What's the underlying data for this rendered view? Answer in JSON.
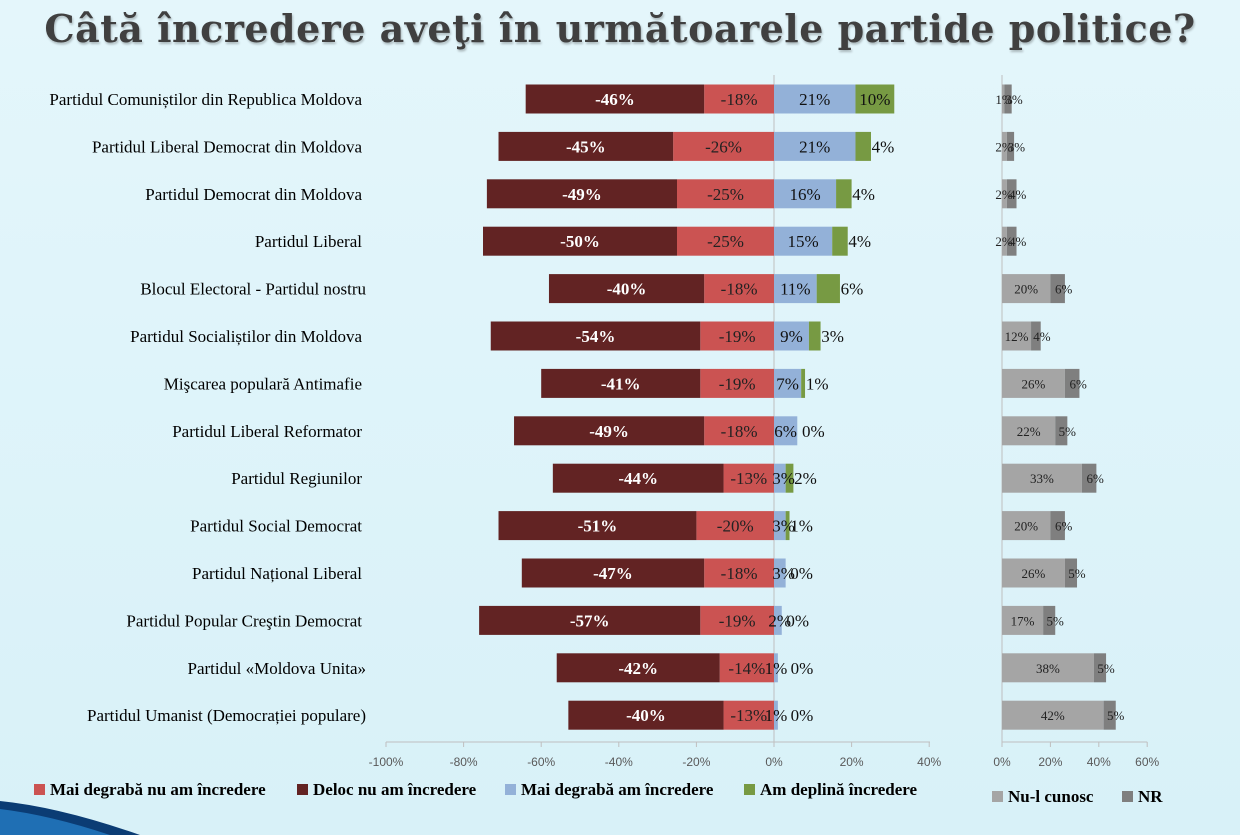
{
  "title": "Câtă încredere aveţi în următoarele partide politice?",
  "colors": {
    "deloc": "#622323",
    "mai_degraba_nu": "#cb5352",
    "mai_degraba_da": "#93b1d8",
    "deplina": "#779a43",
    "nu_cunosc": "#a5a5a5",
    "nr": "#7f7f7f"
  },
  "chart_data": [
    {
      "type": "bar",
      "orientation": "horizontal",
      "stacked": "diverging",
      "title": "",
      "xlim": [
        -100,
        40
      ],
      "xticks": [
        "-100%",
        "-80%",
        "-60%",
        "-40%",
        "-20%",
        "0%",
        "20%",
        "40%"
      ],
      "categories": [
        "Partidul Comuniștilor din Republica Moldova",
        "Partidul Liberal Democrat din Moldova",
        "Partidul Democrat din Moldova",
        "Partidul Liberal",
        "Blocul Electoral - Partidul nostru",
        "Partidul Socialiștilor din Moldova",
        "Mişcarea populară Antimafie",
        "Partidul Liberal Reformator",
        "Partidul Regiunilor",
        "Partidul Social Democrat",
        "Partidul Național Liberal",
        "Partidul Popular Creştin Democrat",
        "Partidul «Moldova Unita»",
        "Partidul Umanist (Democrației populare)"
      ],
      "series": [
        {
          "name": "Mai degrabă nu am încredere",
          "values": [
            -18,
            -26,
            -25,
            -25,
            -18,
            -19,
            -19,
            -18,
            -13,
            -20,
            -18,
            -19,
            -14,
            -13
          ],
          "labels": [
            "-18%",
            "-26%",
            "-25%",
            "-25%",
            "-18%",
            "-19%",
            "-19%",
            "-18%",
            "-13%",
            "-20%",
            "-18%",
            "-19%",
            "-14%",
            "-13%"
          ]
        },
        {
          "name": "Deloc nu am încredere",
          "values": [
            -46,
            -45,
            -49,
            -50,
            -40,
            -54,
            -41,
            -49,
            -44,
            -51,
            -47,
            -57,
            -42,
            -40
          ],
          "labels": [
            "-46%",
            "-45%",
            "-49%",
            "-50%",
            "-40%",
            "-54%",
            "-41%",
            "-49%",
            "-44%",
            "-51%",
            "-47%",
            "-57%",
            "-42%",
            "-40%"
          ]
        },
        {
          "name": "Mai degrabă am încredere",
          "values": [
            21,
            21,
            16,
            15,
            11,
            9,
            7,
            6,
            3,
            3,
            3,
            2,
            1,
            1
          ],
          "labels": [
            "21%",
            "21%",
            "16%",
            "15%",
            "11%",
            "9%",
            "7%",
            "6%",
            "3%",
            "3%",
            "3%",
            "2%",
            "1%",
            "1%"
          ]
        },
        {
          "name": "Am deplină încredere",
          "values": [
            10,
            4,
            4,
            4,
            6,
            3,
            1,
            0,
            2,
            1,
            0,
            0,
            0,
            0
          ],
          "labels": [
            "10%",
            "4%",
            "4%",
            "4%",
            "6%",
            "3%",
            "1%",
            "0%",
            "2%",
            "1%",
            "0%",
            "0%",
            "0%",
            "0%"
          ]
        }
      ]
    },
    {
      "type": "bar",
      "orientation": "horizontal",
      "stacked": true,
      "title": "",
      "xlim": [
        0,
        60
      ],
      "xticks": [
        "0%",
        "20%",
        "40%",
        "60%"
      ],
      "series": [
        {
          "name": "Nu-l cunosc",
          "values": [
            1,
            2,
            2,
            2,
            20,
            12,
            26,
            22,
            33,
            20,
            26,
            17,
            38,
            42
          ],
          "labels": [
            "1%",
            "2%",
            "2%",
            "2%",
            "20%",
            "12%",
            "26%",
            "22%",
            "33%",
            "20%",
            "26%",
            "17%",
            "38%",
            "42%"
          ]
        },
        {
          "name": "NR",
          "values": [
            3,
            3,
            4,
            4,
            6,
            4,
            6,
            5,
            6,
            6,
            5,
            5,
            5,
            5
          ],
          "labels": [
            "3%",
            "3%",
            "4%",
            "4%",
            "6%",
            "4%",
            "6%",
            "5%",
            "6%",
            "6%",
            "5%",
            "5%",
            "5%",
            "5%"
          ]
        }
      ]
    }
  ]
}
